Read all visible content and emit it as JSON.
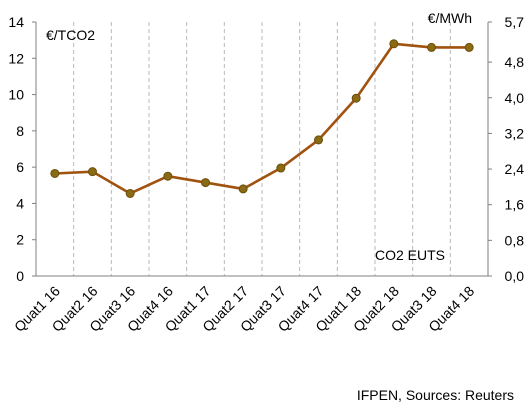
{
  "chart_data": {
    "type": "line",
    "categories": [
      "Quat1 16",
      "Quat2 16",
      "Quat3 16",
      "Quat4 16",
      "Quat1 17",
      "Quat2 17",
      "Quat3 17",
      "Quat4 17",
      "Quat1 18",
      "Quat2 18",
      "Quat3 18",
      "Quat4 18"
    ],
    "series": [
      {
        "values": [
          5.65,
          5.75,
          4.55,
          5.5,
          5.15,
          4.8,
          5.95,
          7.5,
          9.8,
          12.8,
          12.6,
          12.6
        ],
        "color": "#a0520f",
        "marker_color": "#8a6a12"
      }
    ],
    "ylabel_left": "€/TCO2",
    "ylabel_right": "€/MWh",
    "ylim_left": [
      0,
      14
    ],
    "yticks_left": [
      "0",
      "2",
      "4",
      "6",
      "8",
      "10",
      "12",
      "14"
    ],
    "ylim_right": [
      0,
      5.7
    ],
    "yticks_right": [
      {
        "value": 0.0,
        "label": "0,0"
      },
      {
        "value": 0.8,
        "label": "0,8"
      },
      {
        "value": 1.6,
        "label": "1,6"
      },
      {
        "value": 2.4,
        "label": "2,4"
      },
      {
        "value": 3.2,
        "label": "3,2"
      },
      {
        "value": 4.0,
        "label": "4,0"
      },
      {
        "value": 4.8,
        "label": "4,8"
      },
      {
        "value": 5.7,
        "label": "5,7"
      }
    ],
    "annotation": "CO2 EUTS",
    "grid": "vertical-dashed"
  },
  "source": "IFPEN, Sources: Reuters"
}
